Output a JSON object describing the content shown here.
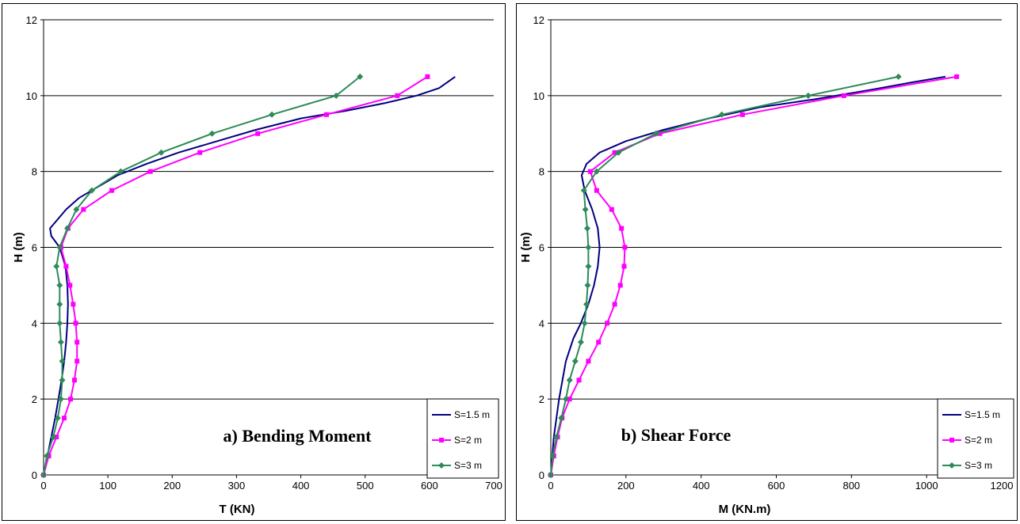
{
  "chart_data": [
    {
      "type": "line",
      "annotation": "a) Bending Moment",
      "xlabel": "T (KN)",
      "ylabel": "H (m)",
      "xlim": [
        0,
        700
      ],
      "ylim": [
        0,
        12
      ],
      "xticks": [
        "0",
        "100",
        "200",
        "300",
        "400",
        "500",
        "600",
        "700"
      ],
      "yticks": [
        "0",
        "2",
        "4",
        "6",
        "8",
        "10",
        "12"
      ],
      "grid": "horizontal",
      "legend_position": "bottom-right",
      "series": [
        {
          "name": "S=1.5 m",
          "color": "#000080",
          "marker": "none",
          "points": [
            [
              0,
              0
            ],
            [
              6,
              0.5
            ],
            [
              12,
              1
            ],
            [
              18,
              1.5
            ],
            [
              23,
              2
            ],
            [
              28,
              2.5
            ],
            [
              32,
              3
            ],
            [
              35,
              3.5
            ],
            [
              37,
              4
            ],
            [
              38,
              4.5
            ],
            [
              37,
              5
            ],
            [
              34,
              5.5
            ],
            [
              25,
              6
            ],
            [
              12,
              6.3
            ],
            [
              10,
              6.5
            ],
            [
              20,
              6.7
            ],
            [
              35,
              7
            ],
            [
              55,
              7.3
            ],
            [
              85,
              7.6
            ],
            [
              115,
              7.9
            ],
            [
              160,
              8.2
            ],
            [
              210,
              8.5
            ],
            [
              270,
              8.8
            ],
            [
              330,
              9.1
            ],
            [
              400,
              9.4
            ],
            [
              470,
              9.6
            ],
            [
              530,
              9.8
            ],
            [
              580,
              10
            ],
            [
              615,
              10.2
            ],
            [
              640,
              10.5
            ]
          ]
        },
        {
          "name": "S=2 m",
          "color": "#FF00FF",
          "marker": "square",
          "points": [
            [
              0,
              0
            ],
            [
              8,
              0.5
            ],
            [
              20,
              1
            ],
            [
              32,
              1.5
            ],
            [
              42,
              2
            ],
            [
              48,
              2.5
            ],
            [
              52,
              3
            ],
            [
              52,
              3.5
            ],
            [
              50,
              4
            ],
            [
              46,
              4.5
            ],
            [
              41,
              5
            ],
            [
              35,
              5.5
            ],
            [
              27,
              6
            ],
            [
              38,
              6.5
            ],
            [
              62,
              7
            ],
            [
              106,
              7.5
            ],
            [
              166,
              8
            ],
            [
              243,
              8.5
            ],
            [
              333,
              9
            ],
            [
              440,
              9.5
            ],
            [
              550,
              10
            ],
            [
              597,
              10.5
            ]
          ]
        },
        {
          "name": "S=3 m",
          "color": "#2E8B57",
          "marker": "diamond",
          "points": [
            [
              0,
              0
            ],
            [
              5,
              0.5
            ],
            [
              15,
              1
            ],
            [
              22,
              1.5
            ],
            [
              27,
              2
            ],
            [
              29,
              2.5
            ],
            [
              29,
              3
            ],
            [
              27,
              3.5
            ],
            [
              25,
              4
            ],
            [
              25,
              4.5
            ],
            [
              25,
              5
            ],
            [
              20,
              5.5
            ],
            [
              25,
              6
            ],
            [
              37,
              6.5
            ],
            [
              51,
              7
            ],
            [
              75,
              7.5
            ],
            [
              120,
              8
            ],
            [
              183,
              8.5
            ],
            [
              262,
              9
            ],
            [
              355,
              9.5
            ],
            [
              455,
              10
            ],
            [
              492,
              10.5
            ]
          ]
        }
      ]
    },
    {
      "type": "line",
      "annotation": "b) Shear Force",
      "xlabel": "M (KN.m)",
      "ylabel": "H (m)",
      "xlim": [
        0,
        1200
      ],
      "ylim": [
        0,
        12
      ],
      "xticks": [
        "0",
        "200",
        "400",
        "600",
        "800",
        "1000",
        "1200"
      ],
      "yticks": [
        "0",
        "2",
        "4",
        "6",
        "8",
        "10",
        "12"
      ],
      "grid": "horizontal",
      "legend_position": "bottom-right",
      "series": [
        {
          "name": "S=1.5 m",
          "color": "#000080",
          "marker": "none",
          "points": [
            [
              0,
              0
            ],
            [
              8,
              1
            ],
            [
              22,
              2
            ],
            [
              40,
              3
            ],
            [
              60,
              3.6
            ],
            [
              80,
              4
            ],
            [
              100,
              4.5
            ],
            [
              115,
              5
            ],
            [
              125,
              5.5
            ],
            [
              130,
              6
            ],
            [
              125,
              6.5
            ],
            [
              110,
              7
            ],
            [
              90,
              7.5
            ],
            [
              82,
              7.9
            ],
            [
              95,
              8.2
            ],
            [
              130,
              8.5
            ],
            [
              200,
              8.8
            ],
            [
              300,
              9.1
            ],
            [
              420,
              9.4
            ],
            [
              560,
              9.7
            ],
            [
              700,
              9.9
            ],
            [
              850,
              10.15
            ],
            [
              960,
              10.35
            ],
            [
              1050,
              10.5
            ]
          ]
        },
        {
          "name": "S=2 m",
          "color": "#FF00FF",
          "marker": "square",
          "points": [
            [
              0,
              0
            ],
            [
              8,
              0.5
            ],
            [
              18,
              1
            ],
            [
              30,
              1.5
            ],
            [
              50,
              2
            ],
            [
              75,
              2.5
            ],
            [
              100,
              3
            ],
            [
              127,
              3.5
            ],
            [
              150,
              4
            ],
            [
              170,
              4.5
            ],
            [
              185,
              5
            ],
            [
              195,
              5.5
            ],
            [
              197,
              6
            ],
            [
              188,
              6.5
            ],
            [
              162,
              7
            ],
            [
              122,
              7.5
            ],
            [
              105,
              8
            ],
            [
              170,
              8.5
            ],
            [
              290,
              9
            ],
            [
              510,
              9.5
            ],
            [
              780,
              10
            ],
            [
              1080,
              10.5
            ]
          ]
        },
        {
          "name": "S=3 m",
          "color": "#2E8B57",
          "marker": "diamond",
          "points": [
            [
              0,
              0
            ],
            [
              5,
              0.5
            ],
            [
              15,
              1
            ],
            [
              28,
              1.5
            ],
            [
              40,
              2
            ],
            [
              50,
              2.5
            ],
            [
              65,
              3
            ],
            [
              80,
              3.5
            ],
            [
              90,
              4
            ],
            [
              95,
              4.5
            ],
            [
              98,
              5
            ],
            [
              100,
              5.5
            ],
            [
              100,
              6
            ],
            [
              97,
              6.5
            ],
            [
              92,
              7
            ],
            [
              88,
              7.5
            ],
            [
              122,
              8
            ],
            [
              180,
              8.5
            ],
            [
              280,
              9
            ],
            [
              455,
              9.5
            ],
            [
              685,
              10
            ],
            [
              925,
              10.5
            ]
          ]
        }
      ]
    }
  ]
}
